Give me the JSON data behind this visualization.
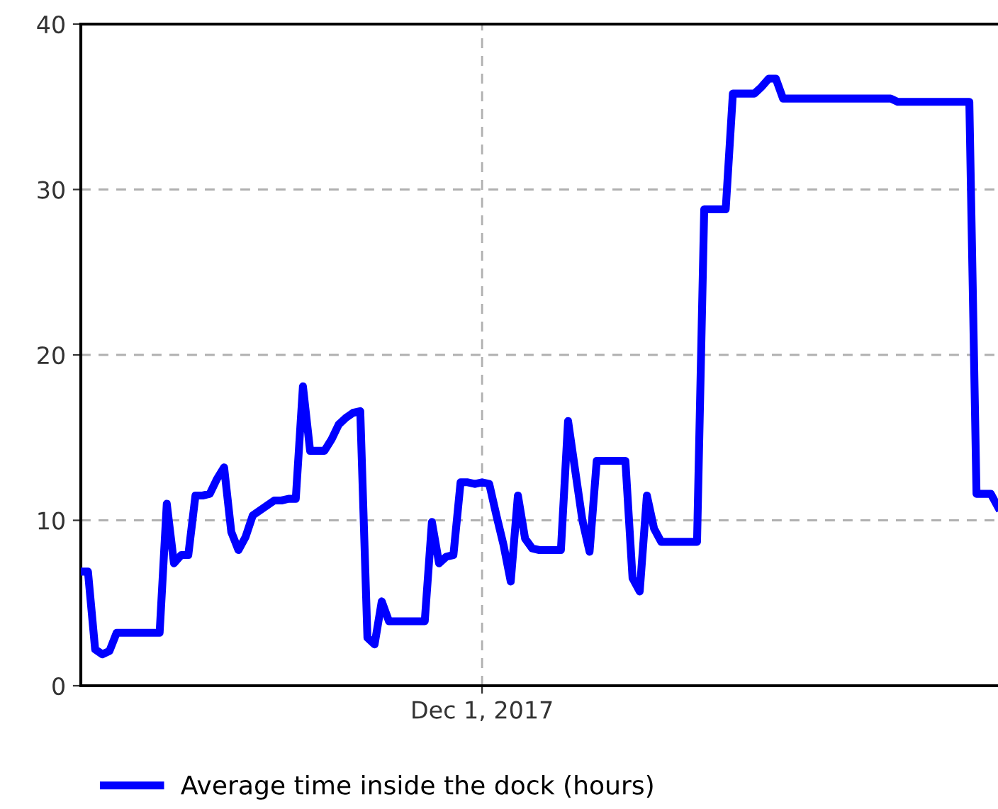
{
  "chart_data": {
    "type": "line",
    "categories": [
      null,
      null,
      null,
      null,
      null,
      null,
      null,
      null,
      null,
      null,
      null,
      null,
      null,
      null,
      null,
      null,
      null,
      null,
      null,
      null,
      null,
      null,
      null,
      null,
      null,
      null,
      null,
      null,
      null,
      null,
      null,
      null,
      null,
      null,
      null,
      null,
      null,
      null,
      null,
      null,
      null,
      null,
      null,
      null,
      null,
      null,
      null,
      null,
      null,
      null,
      null,
      null,
      null,
      null,
      null,
      null,
      "Dec 1, 2017",
      null,
      null,
      null,
      null,
      null,
      null,
      null,
      null,
      null,
      null,
      null,
      null,
      null,
      null,
      null,
      null,
      null,
      null,
      null,
      null,
      null,
      null,
      null,
      null,
      null,
      null,
      null,
      null,
      null,
      null,
      null,
      null,
      null,
      null,
      null,
      null,
      null,
      null,
      null,
      null,
      null,
      null,
      null,
      null,
      null,
      null,
      null,
      null,
      null,
      null,
      null,
      null,
      null,
      null,
      null,
      null,
      null,
      null,
      null,
      null,
      null,
      null,
      null,
      null,
      null,
      null,
      null,
      null,
      null,
      null,
      null,
      null
    ],
    "series": [
      {
        "name": "Average time inside the dock (hours)",
        "color": "#0000ff",
        "values": [
          6.9,
          6.9,
          2.2,
          1.9,
          2.1,
          3.2,
          3.2,
          3.2,
          3.2,
          3.2,
          3.2,
          3.2,
          11.0,
          7.4,
          7.9,
          7.9,
          11.5,
          11.5,
          11.6,
          12.5,
          13.2,
          9.3,
          8.2,
          9.0,
          10.3,
          10.6,
          10.9,
          11.2,
          11.2,
          11.3,
          11.3,
          18.1,
          14.2,
          14.2,
          14.2,
          14.9,
          15.8,
          16.2,
          16.5,
          16.6,
          2.9,
          2.5,
          5.1,
          3.9,
          3.9,
          3.9,
          3.9,
          3.9,
          3.9,
          9.9,
          7.4,
          7.8,
          7.9,
          12.3,
          12.3,
          12.2,
          12.3,
          12.2,
          10.3,
          8.5,
          6.3,
          11.5,
          8.9,
          8.3,
          8.2,
          8.2,
          8.2,
          8.2,
          16.0,
          13.0,
          10.0,
          8.1,
          13.6,
          13.6,
          13.6,
          13.6,
          13.6,
          6.5,
          5.7,
          11.5,
          9.5,
          8.7,
          8.7,
          8.7,
          8.7,
          8.7,
          8.7,
          28.8,
          28.8,
          28.8,
          28.8,
          35.8,
          35.8,
          35.8,
          35.8,
          36.2,
          36.7,
          36.7,
          35.5,
          35.5,
          35.5,
          35.5,
          35.5,
          35.5,
          35.5,
          35.5,
          35.5,
          35.5,
          35.5,
          35.5,
          35.5,
          35.5,
          35.5,
          35.5,
          35.3,
          35.3,
          35.3,
          35.3,
          35.3,
          35.3,
          35.3,
          35.3,
          35.3,
          35.3,
          35.3,
          11.6,
          11.6,
          11.6,
          10.8
        ]
      }
    ],
    "ylim": [
      0,
      40
    ],
    "yticks": [
      0,
      10,
      20,
      30,
      40
    ],
    "grid": true,
    "legend": "bottom",
    "marker": "none",
    "line_style": "solid"
  }
}
